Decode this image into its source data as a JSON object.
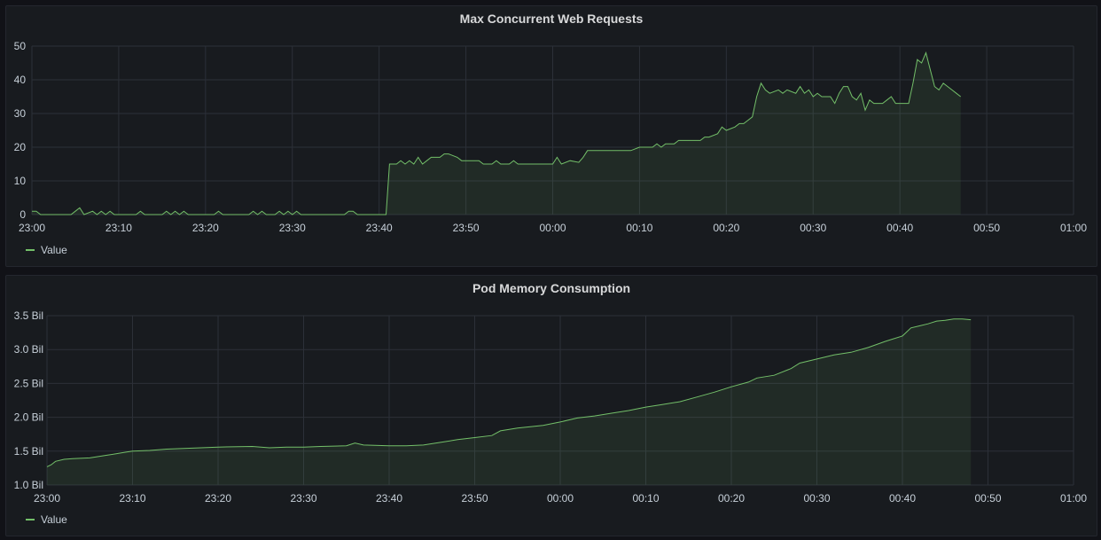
{
  "colors": {
    "series": "#73bf69",
    "grid": "#2c3038",
    "text": "#c7d0d9"
  },
  "panels": [
    {
      "title": "Max Concurrent Web Requests",
      "legend": "Value",
      "chart_data": {
        "type": "area",
        "title": "Max Concurrent Web Requests",
        "x_unit": "minutes",
        "x_ticks": [
          "23:00",
          "23:10",
          "23:20",
          "23:30",
          "23:40",
          "23:50",
          "00:00",
          "00:10",
          "00:20",
          "00:30",
          "00:40",
          "00:50",
          "01:00"
        ],
        "y_ticks": [
          "0",
          "10",
          "20",
          "30",
          "40",
          "50"
        ],
        "ylim": [
          0,
          50
        ],
        "xlim": [
          0,
          120
        ],
        "grid": true,
        "series": [
          {
            "name": "Value",
            "points": [
              [
                0,
                1
              ],
              [
                0.5,
                1
              ],
              [
                1,
                0
              ],
              [
                4,
                0
              ],
              [
                4.5,
                0
              ],
              [
                5,
                1
              ],
              [
                5.5,
                2
              ],
              [
                6,
                0
              ],
              [
                7,
                1
              ],
              [
                7.5,
                0
              ],
              [
                8,
                1
              ],
              [
                8.5,
                0
              ],
              [
                9,
                1
              ],
              [
                9.5,
                0
              ],
              [
                12,
                0
              ],
              [
                12.5,
                1
              ],
              [
                13,
                0
              ],
              [
                15,
                0
              ],
              [
                15.5,
                1
              ],
              [
                16,
                0
              ],
              [
                16.5,
                1
              ],
              [
                17,
                0
              ],
              [
                17.5,
                1
              ],
              [
                18,
                0
              ],
              [
                21,
                0
              ],
              [
                21.5,
                1
              ],
              [
                22,
                0
              ],
              [
                25,
                0
              ],
              [
                25.5,
                1
              ],
              [
                26,
                0
              ],
              [
                26.5,
                1
              ],
              [
                27,
                0
              ],
              [
                28,
                0
              ],
              [
                28.5,
                1
              ],
              [
                29,
                0
              ],
              [
                29.5,
                1
              ],
              [
                30,
                0
              ],
              [
                30.5,
                1
              ],
              [
                31,
                0
              ],
              [
                36,
                0
              ],
              [
                36.5,
                1
              ],
              [
                37,
                1
              ],
              [
                37.5,
                0
              ],
              [
                40.8,
                0
              ],
              [
                41.2,
                15
              ],
              [
                42,
                15
              ],
              [
                42.5,
                16
              ],
              [
                43,
                15
              ],
              [
                43.5,
                16
              ],
              [
                44,
                15
              ],
              [
                44.5,
                17
              ],
              [
                45,
                15
              ],
              [
                45.5,
                16
              ],
              [
                46,
                17
              ],
              [
                47,
                17
              ],
              [
                47.5,
                18
              ],
              [
                48,
                18
              ],
              [
                49,
                17
              ],
              [
                49.5,
                16
              ],
              [
                50,
                16
              ],
              [
                51,
                16
              ],
              [
                51.5,
                16
              ],
              [
                52,
                15
              ],
              [
                53,
                15
              ],
              [
                53.5,
                16
              ],
              [
                54,
                15
              ],
              [
                55,
                15
              ],
              [
                55.5,
                16
              ],
              [
                56,
                15
              ],
              [
                58,
                15
              ],
              [
                59,
                15
              ],
              [
                60,
                15
              ],
              [
                60.5,
                17
              ],
              [
                61,
                15
              ],
              [
                62,
                16
              ],
              [
                63,
                15.5
              ],
              [
                63.5,
                17
              ],
              [
                64,
                19
              ],
              [
                65,
                19
              ],
              [
                66,
                19
              ],
              [
                67,
                19
              ],
              [
                68,
                19
              ],
              [
                69,
                19
              ],
              [
                70,
                20
              ],
              [
                71,
                20
              ],
              [
                71.5,
                20
              ],
              [
                72,
                21
              ],
              [
                72.5,
                20
              ],
              [
                73,
                21
              ],
              [
                74,
                21
              ],
              [
                74.5,
                22
              ],
              [
                75,
                22
              ],
              [
                76,
                22
              ],
              [
                77,
                22
              ],
              [
                77.5,
                23
              ],
              [
                78,
                23
              ],
              [
                79,
                24
              ],
              [
                79.5,
                26
              ],
              [
                80,
                25
              ],
              [
                81,
                26
              ],
              [
                81.5,
                27
              ],
              [
                82,
                27
              ],
              [
                82.5,
                28
              ],
              [
                83,
                29
              ],
              [
                83.5,
                35
              ],
              [
                84,
                39
              ],
              [
                84.5,
                37
              ],
              [
                85,
                36
              ],
              [
                86,
                37
              ],
              [
                86.5,
                36
              ],
              [
                87,
                37
              ],
              [
                88,
                36
              ],
              [
                88.5,
                38
              ],
              [
                89,
                36
              ],
              [
                89.5,
                37
              ],
              [
                90,
                35
              ],
              [
                90.5,
                36
              ],
              [
                91,
                35
              ],
              [
                92,
                35
              ],
              [
                92.5,
                33
              ],
              [
                93,
                36
              ],
              [
                93.5,
                38
              ],
              [
                94,
                38
              ],
              [
                94.5,
                35
              ],
              [
                95,
                34
              ],
              [
                95.5,
                36
              ],
              [
                96,
                31
              ],
              [
                96.5,
                34
              ],
              [
                97,
                33
              ],
              [
                98,
                33
              ],
              [
                98.5,
                34
              ],
              [
                99,
                35
              ],
              [
                99.5,
                33
              ],
              [
                100,
                33
              ],
              [
                101,
                33
              ],
              [
                101.5,
                39
              ],
              [
                102,
                46
              ],
              [
                102.5,
                45
              ],
              [
                103,
                48
              ],
              [
                103.5,
                43
              ],
              [
                104,
                38
              ],
              [
                104.5,
                37
              ],
              [
                105,
                39
              ],
              [
                105.5,
                38
              ],
              [
                106,
                37
              ],
              [
                106.5,
                36
              ],
              [
                107,
                35
              ]
            ]
          }
        ]
      }
    },
    {
      "title": "Pod Memory Consumption",
      "legend": "Value",
      "chart_data": {
        "type": "area",
        "title": "Pod Memory Consumption",
        "x_unit": "minutes",
        "x_ticks": [
          "23:00",
          "23:10",
          "23:20",
          "23:30",
          "23:40",
          "23:50",
          "00:00",
          "00:10",
          "00:20",
          "00:30",
          "00:40",
          "00:50",
          "01:00"
        ],
        "y_ticks": [
          "1.0 Bil",
          "1.5 Bil",
          "2.0 Bil",
          "2.5 Bil",
          "3.0 Bil",
          "3.5 Bil"
        ],
        "ylim": [
          1.0,
          3.5
        ],
        "xlim": [
          0,
          120
        ],
        "grid": true,
        "series": [
          {
            "name": "Value",
            "points": [
              [
                0,
                1.27
              ],
              [
                0.5,
                1.3
              ],
              [
                1,
                1.35
              ],
              [
                2,
                1.38
              ],
              [
                3,
                1.39
              ],
              [
                5,
                1.4
              ],
              [
                7,
                1.44
              ],
              [
                8,
                1.46
              ],
              [
                9,
                1.48
              ],
              [
                10,
                1.5
              ],
              [
                12,
                1.51
              ],
              [
                14,
                1.53
              ],
              [
                16,
                1.54
              ],
              [
                18,
                1.55
              ],
              [
                20,
                1.56
              ],
              [
                24,
                1.57
              ],
              [
                26,
                1.55
              ],
              [
                28,
                1.56
              ],
              [
                30,
                1.56
              ],
              [
                32,
                1.57
              ],
              [
                35,
                1.58
              ],
              [
                36,
                1.62
              ],
              [
                37,
                1.59
              ],
              [
                40,
                1.58
              ],
              [
                42,
                1.58
              ],
              [
                44,
                1.59
              ],
              [
                46,
                1.63
              ],
              [
                48,
                1.67
              ],
              [
                50,
                1.7
              ],
              [
                52,
                1.73
              ],
              [
                53,
                1.8
              ],
              [
                55,
                1.84
              ],
              [
                58,
                1.88
              ],
              [
                60,
                1.93
              ],
              [
                62,
                1.99
              ],
              [
                64,
                2.02
              ],
              [
                66,
                2.06
              ],
              [
                68,
                2.1
              ],
              [
                70,
                2.15
              ],
              [
                72,
                2.19
              ],
              [
                74,
                2.23
              ],
              [
                76,
                2.3
              ],
              [
                78,
                2.37
              ],
              [
                80,
                2.45
              ],
              [
                82,
                2.52
              ],
              [
                83,
                2.58
              ],
              [
                85,
                2.62
              ],
              [
                87,
                2.72
              ],
              [
                88,
                2.8
              ],
              [
                90,
                2.86
              ],
              [
                92,
                2.92
              ],
              [
                94,
                2.96
              ],
              [
                96,
                3.03
              ],
              [
                98,
                3.12
              ],
              [
                100,
                3.2
              ],
              [
                101,
                3.32
              ],
              [
                102,
                3.35
              ],
              [
                103,
                3.38
              ],
              [
                104,
                3.42
              ],
              [
                105,
                3.43
              ],
              [
                106,
                3.45
              ],
              [
                107,
                3.45
              ],
              [
                108,
                3.44
              ]
            ]
          }
        ]
      }
    }
  ]
}
